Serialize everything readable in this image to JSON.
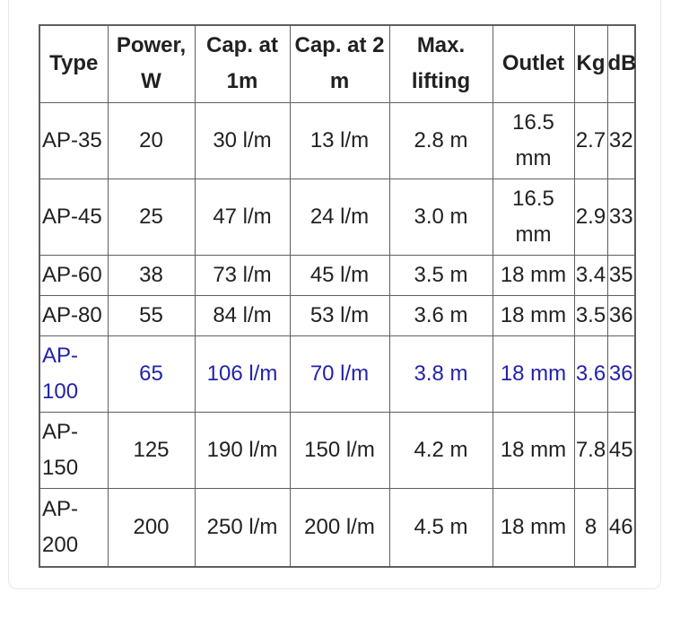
{
  "card": {
    "background": "#ffffff",
    "border_color": "#e8e8e8"
  },
  "table": {
    "text_color": "#212121",
    "border_color": "#5f5f5f",
    "link_color": "#2222aa",
    "headers": [
      "Type",
      "Power, W",
      "Cap. at 1m",
      "Cap. at 2 m",
      "Max. lifting",
      "Outlet",
      "Kg",
      "dB"
    ],
    "rows": [
      {
        "highlight": false,
        "cells": [
          "AP-35",
          "20",
          "30 l/m",
          "13 l/m",
          "2.8 m",
          "16.5 mm",
          "2.7",
          "32"
        ]
      },
      {
        "highlight": false,
        "cells": [
          "AP-45",
          "25",
          "47 l/m",
          "24 l/m",
          "3.0 m",
          "16.5 mm",
          "2.9",
          "33"
        ]
      },
      {
        "highlight": false,
        "cells": [
          "AP-60",
          "38",
          "73 l/m",
          "45 l/m",
          "3.5 m",
          "18 mm",
          "3.4",
          "35"
        ]
      },
      {
        "highlight": false,
        "cells": [
          "AP-80",
          "55",
          "84 l/m",
          "53 l/m",
          "3.6 m",
          "18 mm",
          "3.5",
          "36"
        ]
      },
      {
        "highlight": true,
        "cells": [
          "AP-100",
          "65",
          "106 l/m",
          "70 l/m",
          "3.8 m",
          "18 mm",
          "3.6",
          "36"
        ]
      },
      {
        "highlight": false,
        "cells": [
          "AP-150",
          "125",
          "190 l/m",
          "150 l/m",
          "4.2 m",
          "18 mm",
          "7.8",
          "45"
        ]
      },
      {
        "highlight": false,
        "cells": [
          "AP-200",
          "200",
          "250 l/m",
          "200 l/m",
          "4.5 m",
          "18 mm",
          "8",
          "46"
        ]
      }
    ]
  }
}
